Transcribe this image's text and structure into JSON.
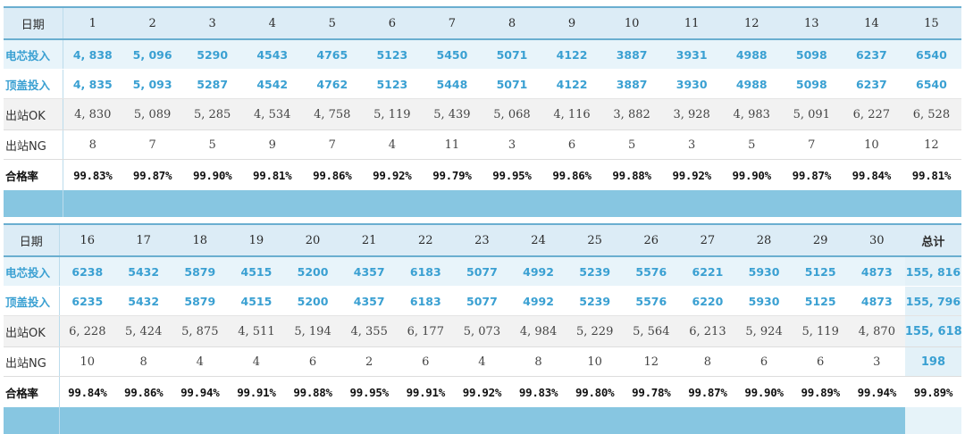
{
  "labels": {
    "date": "日期",
    "cell_input": "电芯投入",
    "lid_input": "顶盖投入",
    "out_ok": "出站OK",
    "out_ng": "出站NG",
    "pass_rate": "合格率"
  },
  "total_label": "总计",
  "table1": {
    "days": [
      "1",
      "2",
      "3",
      "4",
      "5",
      "6",
      "7",
      "8",
      "9",
      "10",
      "11",
      "12",
      "13",
      "14",
      "15"
    ],
    "cell_input": [
      "4, 838",
      "5, 096",
      "5290",
      "4543",
      "4765",
      "5123",
      "5450",
      "5071",
      "4122",
      "3887",
      "3931",
      "4988",
      "5098",
      "6237",
      "6540"
    ],
    "lid_input": [
      "4, 835",
      "5, 093",
      "5287",
      "4542",
      "4762",
      "5123",
      "5448",
      "5071",
      "4122",
      "3887",
      "3930",
      "4988",
      "5098",
      "6237",
      "6540"
    ],
    "out_ok": [
      "4, 830",
      "5, 089",
      "5, 285",
      "4, 534",
      "4, 758",
      "5, 119",
      "5, 439",
      "5, 068",
      "4, 116",
      "3, 882",
      "3, 928",
      "4, 983",
      "5, 091",
      "6, 227",
      "6, 528"
    ],
    "out_ng": [
      "8",
      "7",
      "5",
      "9",
      "7",
      "4",
      "11",
      "3",
      "6",
      "5",
      "3",
      "5",
      "7",
      "10",
      "12"
    ],
    "pass_rate": [
      "99.83%",
      "99.87%",
      "99.90%",
      "99.81%",
      "99.86%",
      "99.92%",
      "99.79%",
      "99.95%",
      "99.86%",
      "99.88%",
      "99.92%",
      "99.90%",
      "99.87%",
      "99.84%",
      "99.81%"
    ]
  },
  "table2": {
    "days": [
      "16",
      "17",
      "18",
      "19",
      "20",
      "21",
      "22",
      "23",
      "24",
      "25",
      "26",
      "27",
      "28",
      "29",
      "30"
    ],
    "cell_input": [
      "6238",
      "5432",
      "5879",
      "4515",
      "5200",
      "4357",
      "6183",
      "5077",
      "4992",
      "5239",
      "5576",
      "6221",
      "5930",
      "5125",
      "4873"
    ],
    "lid_input": [
      "6235",
      "5432",
      "5879",
      "4515",
      "5200",
      "4357",
      "6183",
      "5077",
      "4992",
      "5239",
      "5576",
      "6220",
      "5930",
      "5125",
      "4873"
    ],
    "out_ok": [
      "6, 228",
      "5, 424",
      "5, 875",
      "4, 511",
      "5, 194",
      "4, 355",
      "6, 177",
      "5, 073",
      "4, 984",
      "5, 229",
      "5, 564",
      "6, 213",
      "5, 924",
      "5, 119",
      "4, 870"
    ],
    "out_ng": [
      "10",
      "8",
      "4",
      "4",
      "6",
      "2",
      "6",
      "4",
      "8",
      "10",
      "12",
      "8",
      "6",
      "6",
      "3"
    ],
    "pass_rate": [
      "99.84%",
      "99.86%",
      "99.94%",
      "99.91%",
      "99.88%",
      "99.95%",
      "99.91%",
      "99.92%",
      "99.83%",
      "99.80%",
      "99.78%",
      "99.87%",
      "99.90%",
      "99.89%",
      "99.94%"
    ]
  },
  "totals": {
    "cell_input": "155, 816",
    "lid_input": "155, 796",
    "out_ok": "155, 618",
    "out_ng": "198",
    "pass_rate": "99.89%"
  }
}
